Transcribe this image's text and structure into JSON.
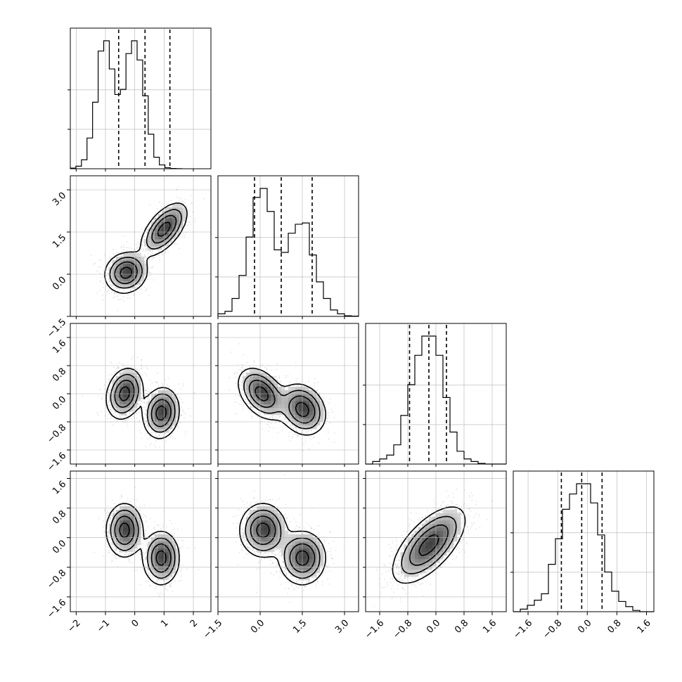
{
  "chart_data": {
    "type": "corner",
    "grid": true,
    "parameters": [
      {
        "index": 0,
        "range": [
          -2.2,
          2.6
        ],
        "ticks": [
          -2,
          -1,
          0,
          1,
          2
        ],
        "tick_labels": [
          "−2",
          "−1",
          "0",
          "1",
          "2"
        ],
        "quantiles": [
          -0.55,
          0.35,
          1.2
        ],
        "hist_edges": [
          -2.2,
          1.6,
          0.24
        ],
        "hist_counts": [
          0.005,
          0.02,
          0.07,
          0.24,
          0.52,
          0.92,
          1.0,
          0.78,
          0.58,
          0.62,
          0.9,
          1.0,
          0.85,
          0.57,
          0.27,
          0.09,
          0.03,
          0.008,
          0.002,
          0.001
        ]
      },
      {
        "index": 1,
        "range": [
          -1.5,
          3.5
        ],
        "ticks": [
          -1.5,
          0.0,
          1.5,
          3.0
        ],
        "tick_labels": [
          "−1.5",
          "0.0",
          "1.5",
          "3.0"
        ],
        "quantiles": [
          -0.2,
          0.75,
          1.85
        ],
        "hist_edges": [
          -1.5,
          3.5,
          0.25
        ],
        "hist_counts": [
          0.02,
          0.04,
          0.14,
          0.32,
          0.62,
          0.93,
          1.0,
          0.82,
          0.52,
          0.5,
          0.65,
          0.72,
          0.73,
          0.48,
          0.27,
          0.14,
          0.05,
          0.02,
          0.005,
          0.002
        ]
      },
      {
        "index": 2,
        "range": [
          -2.0,
          2.0
        ],
        "ticks": [
          -1.6,
          -0.8,
          0.0,
          0.8,
          1.6
        ],
        "tick_labels": [
          "−1.6",
          "−0.8",
          "0.0",
          "0.8",
          "1.6"
        ],
        "quantiles": [
          -0.75,
          -0.2,
          0.3
        ],
        "hist_edges": [
          -2.0,
          2.0,
          0.2
        ],
        "hist_counts": [
          0.0,
          0.02,
          0.04,
          0.07,
          0.15,
          0.38,
          0.62,
          0.85,
          1.0,
          1.0,
          0.85,
          0.52,
          0.25,
          0.1,
          0.04,
          0.02,
          0.005,
          0.0,
          0.0,
          0.0
        ]
      },
      {
        "index": 3,
        "range": [
          -2.0,
          1.8
        ],
        "ticks": [
          -1.6,
          -0.8,
          0.0,
          0.8,
          1.6
        ],
        "tick_labels": [
          "−1.6",
          "−0.8",
          "0.0",
          "0.8",
          "1.6"
        ],
        "quantiles": [
          -0.7,
          -0.15,
          0.4
        ],
        "hist_edges": [
          -2.0,
          1.8,
          0.19
        ],
        "hist_counts": [
          0.0,
          0.02,
          0.05,
          0.09,
          0.14,
          0.37,
          0.57,
          0.8,
          0.92,
          1.0,
          1.0,
          0.85,
          0.6,
          0.31,
          0.16,
          0.08,
          0.04,
          0.01,
          0.0,
          0.0
        ]
      }
    ],
    "pairs": [
      {
        "row": 1,
        "col": 0,
        "modes": [
          {
            "cx": -0.3,
            "cy": 0.05,
            "sx": 0.35,
            "sy": 0.35,
            "rho": 0.1,
            "w": 0.5
          },
          {
            "cx": 1.0,
            "cy": 1.6,
            "sx": 0.38,
            "sy": 0.45,
            "rho": 0.6,
            "w": 0.5
          }
        ]
      },
      {
        "row": 2,
        "col": 0,
        "modes": [
          {
            "cx": -0.35,
            "cy": 0.0,
            "sx": 0.3,
            "sy": 0.35,
            "rho": 0.2,
            "w": 0.5
          },
          {
            "cx": 0.9,
            "cy": -0.55,
            "sx": 0.3,
            "sy": 0.35,
            "rho": 0.1,
            "w": 0.5
          }
        ]
      },
      {
        "row": 3,
        "col": 0,
        "modes": [
          {
            "cx": -0.35,
            "cy": 0.2,
            "sx": 0.3,
            "sy": 0.35,
            "rho": 0.0,
            "w": 0.5
          },
          {
            "cx": 0.9,
            "cy": -0.55,
            "sx": 0.3,
            "sy": 0.35,
            "rho": 0.0,
            "w": 0.5
          }
        ]
      },
      {
        "row": 2,
        "col": 1,
        "modes": [
          {
            "cx": 0.05,
            "cy": 0.0,
            "sx": 0.4,
            "sy": 0.35,
            "rho": -0.4,
            "w": 0.5
          },
          {
            "cx": 1.5,
            "cy": -0.45,
            "sx": 0.4,
            "sy": 0.35,
            "rho": -0.2,
            "w": 0.5
          }
        ]
      },
      {
        "row": 3,
        "col": 1,
        "modes": [
          {
            "cx": 0.1,
            "cy": 0.2,
            "sx": 0.4,
            "sy": 0.35,
            "rho": 0.0,
            "w": 0.5
          },
          {
            "cx": 1.5,
            "cy": -0.55,
            "sx": 0.4,
            "sy": 0.35,
            "rho": 0.0,
            "w": 0.5
          }
        ]
      },
      {
        "row": 3,
        "col": 2,
        "modes": [
          {
            "cx": -0.2,
            "cy": -0.2,
            "sx": 0.5,
            "sy": 0.5,
            "rho": 0.65,
            "w": 1.0
          }
        ]
      }
    ]
  }
}
